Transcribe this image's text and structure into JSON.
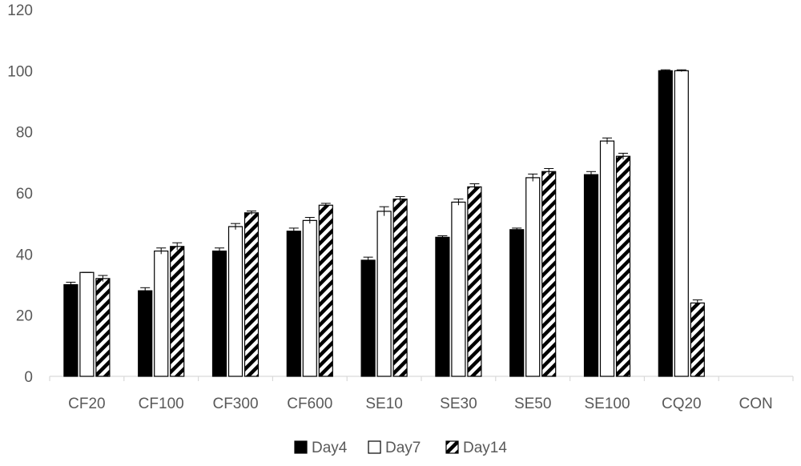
{
  "chart_data": {
    "type": "bar",
    "title": "",
    "xlabel": "",
    "ylabel": "",
    "ylim": [
      0,
      120
    ],
    "y_ticks": [
      0,
      20,
      40,
      60,
      80,
      100,
      120
    ],
    "grid": false,
    "legend_position": "bottom",
    "categories": [
      "CF20",
      "CF100",
      "CF300",
      "CF600",
      "SE10",
      "SE30",
      "SE50",
      "SE100",
      "CQ20",
      "CON"
    ],
    "series": [
      {
        "name": "Day4",
        "fill": "solid-black",
        "color": "#000000",
        "values": [
          30,
          28,
          41,
          47.5,
          38,
          45.5,
          48,
          66,
          100,
          null
        ],
        "errors": [
          0.8,
          1.0,
          1.0,
          1.0,
          1.0,
          0.5,
          0.5,
          1.0,
          0.3,
          null
        ]
      },
      {
        "name": "Day7",
        "fill": "white",
        "color": "#ffffff",
        "values": [
          34,
          41,
          49,
          51,
          54,
          57,
          65,
          77,
          100,
          null
        ],
        "errors": [
          0.0,
          1.0,
          1.0,
          1.0,
          1.5,
          1.0,
          1.2,
          1.0,
          0.3,
          null
        ]
      },
      {
        "name": "Day14",
        "fill": "diagonal-hatch",
        "color": "#000000",
        "values": [
          32,
          42.5,
          53.5,
          56,
          58,
          62,
          67,
          72,
          24,
          null
        ],
        "errors": [
          1.0,
          1.2,
          0.6,
          0.6,
          0.8,
          1.0,
          1.0,
          1.0,
          1.0,
          null
        ]
      }
    ]
  }
}
